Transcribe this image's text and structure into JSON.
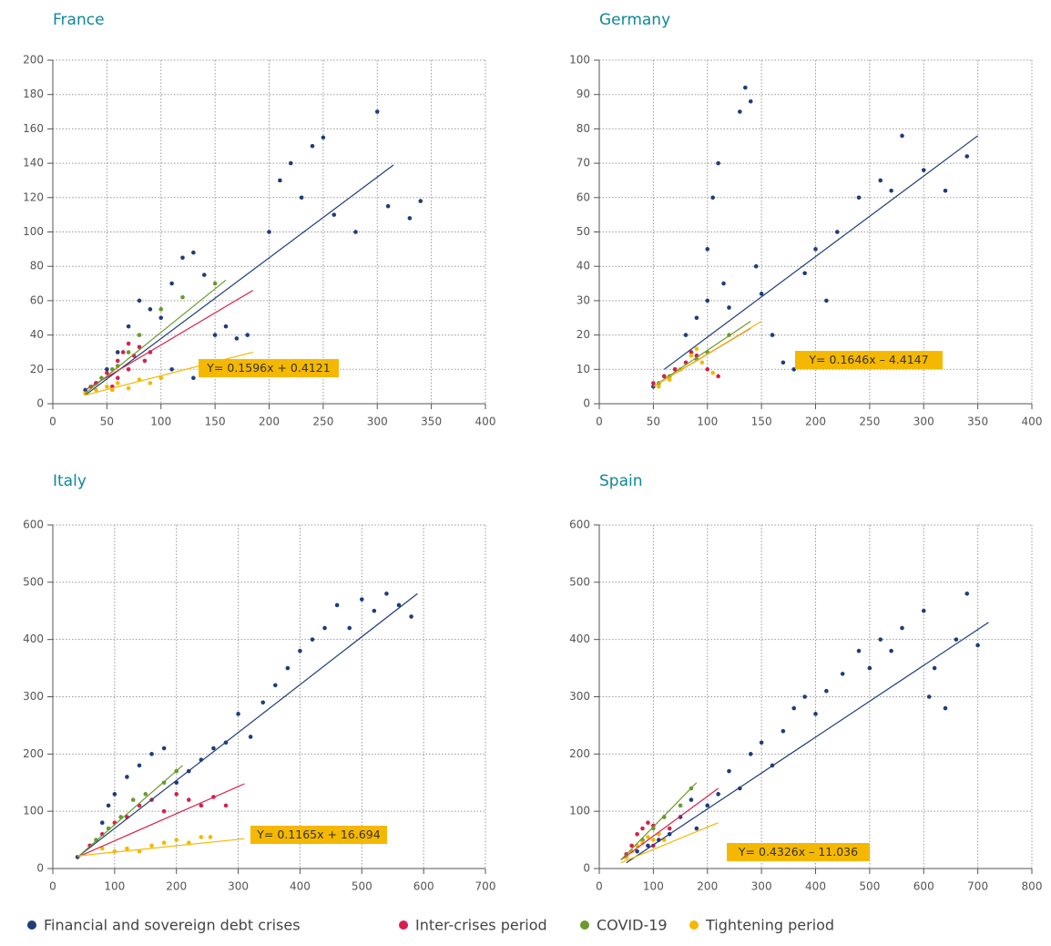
{
  "chart_data": [
    {
      "type": "scatter",
      "title": "France",
      "annotation": "Y= 0.1596x + 0.4121",
      "xlim": [
        0,
        400
      ],
      "xticks": [
        0,
        50,
        100,
        150,
        200,
        250,
        300,
        350,
        400
      ],
      "ylim": [
        0,
        200
      ],
      "yticks": [
        0,
        20,
        40,
        60,
        80,
        100,
        120,
        140,
        160,
        180,
        200
      ],
      "grid": true,
      "series": [
        {
          "x": [
            30,
            40,
            50,
            60,
            70,
            80,
            90,
            100,
            110,
            120,
            130,
            140,
            150,
            160,
            170,
            180,
            200,
            210,
            220,
            230,
            240,
            250,
            260,
            280,
            300,
            310,
            330,
            340,
            110,
            130,
            180
          ],
          "values": [
            8,
            12,
            20,
            30,
            45,
            60,
            55,
            50,
            70,
            85,
            88,
            75,
            40,
            45,
            38,
            40,
            100,
            130,
            140,
            120,
            150,
            155,
            110,
            100,
            170,
            115,
            108,
            118,
            20,
            15,
            20
          ],
          "trend": {
            "x": [
              30,
              315
            ],
            "y": [
              5,
              139
            ]
          }
        },
        {
          "x": [
            40,
            50,
            60,
            65,
            70,
            75,
            80,
            85,
            90,
            60,
            70,
            55
          ],
          "values": [
            12,
            18,
            25,
            30,
            35,
            28,
            33,
            25,
            30,
            15,
            20,
            10
          ],
          "trend": {
            "x": [
              30,
              185
            ],
            "y": [
              8,
              66
            ]
          }
        },
        {
          "x": [
            35,
            45,
            55,
            60,
            70,
            80,
            100,
            120,
            150
          ],
          "values": [
            10,
            15,
            20,
            22,
            30,
            40,
            55,
            62,
            70
          ],
          "trend": {
            "x": [
              30,
              160
            ],
            "y": [
              6,
              72
            ]
          }
        },
        {
          "x": [
            30,
            40,
            50,
            60,
            70,
            80,
            90,
            100,
            55
          ],
          "values": [
            6,
            8,
            10,
            12,
            9,
            14,
            12,
            15,
            8
          ],
          "trend": {
            "x": [
              30,
              185
            ],
            "y": [
              5,
              30
            ]
          }
        }
      ]
    },
    {
      "type": "scatter",
      "title": "Germany",
      "annotation": "Y= 0.1646x – 4.4147",
      "xlim": [
        0,
        400
      ],
      "xticks": [
        0,
        50,
        100,
        150,
        200,
        250,
        300,
        350,
        400
      ],
      "ylim": [
        0,
        100
      ],
      "yticks": [
        0,
        10,
        20,
        30,
        40,
        50,
        60,
        70,
        80,
        90,
        100
      ],
      "grid": true,
      "series": [
        {
          "x": [
            50,
            60,
            70,
            80,
            90,
            100,
            100,
            105,
            110,
            115,
            120,
            130,
            135,
            140,
            145,
            150,
            160,
            170,
            180,
            190,
            200,
            210,
            220,
            240,
            260,
            270,
            280,
            300,
            320,
            340
          ],
          "values": [
            5,
            8,
            10,
            20,
            25,
            30,
            45,
            60,
            70,
            35,
            28,
            85,
            92,
            88,
            40,
            32,
            20,
            12,
            10,
            38,
            45,
            30,
            50,
            60,
            65,
            62,
            78,
            68,
            62,
            72
          ],
          "trend": {
            "x": [
              60,
              350
            ],
            "y": [
              10,
              78
            ]
          }
        },
        {
          "x": [
            50,
            60,
            70,
            80,
            90,
            100,
            110,
            85
          ],
          "values": [
            6,
            8,
            10,
            12,
            14,
            10,
            8,
            15
          ],
          "trend": {
            "x": [
              50,
              140
            ],
            "y": [
              5,
              22
            ]
          }
        },
        {
          "x": [
            55,
            65,
            75,
            90,
            100,
            120
          ],
          "values": [
            6,
            8,
            10,
            13,
            15,
            20
          ],
          "trend": {
            "x": [
              50,
              140
            ],
            "y": [
              5,
              24
            ]
          }
        },
        {
          "x": [
            55,
            65,
            75,
            85,
            95,
            105,
            90
          ],
          "values": [
            5,
            7,
            10,
            14,
            12,
            9,
            16
          ],
          "trend": {
            "x": [
              50,
              150
            ],
            "y": [
              5,
              24
            ]
          }
        }
      ]
    },
    {
      "type": "scatter",
      "title": "Italy",
      "annotation": "Y= 0.1165x + 16.694",
      "xlim": [
        0,
        700
      ],
      "xticks": [
        0,
        100,
        200,
        300,
        400,
        500,
        600,
        700
      ],
      "ylim": [
        0,
        600
      ],
      "yticks": [
        0,
        100,
        200,
        300,
        400,
        500,
        600
      ],
      "grid": true,
      "series": [
        {
          "x": [
            40,
            60,
            80,
            90,
            100,
            120,
            140,
            160,
            180,
            200,
            220,
            240,
            260,
            280,
            300,
            320,
            340,
            360,
            380,
            400,
            420,
            440,
            460,
            480,
            500,
            520,
            540,
            560,
            580
          ],
          "values": [
            20,
            40,
            80,
            110,
            130,
            160,
            180,
            200,
            210,
            150,
            170,
            190,
            210,
            220,
            270,
            230,
            290,
            320,
            350,
            380,
            400,
            420,
            460,
            420,
            470,
            450,
            480,
            460,
            440
          ],
          "trend": {
            "x": [
              40,
              590
            ],
            "y": [
              20,
              480
            ]
          }
        },
        {
          "x": [
            60,
            80,
            100,
            120,
            140,
            160,
            180,
            200,
            220,
            240,
            260,
            280
          ],
          "values": [
            40,
            60,
            80,
            90,
            110,
            120,
            100,
            130,
            120,
            110,
            125,
            110
          ],
          "trend": {
            "x": [
              40,
              310
            ],
            "y": [
              20,
              148
            ]
          }
        },
        {
          "x": [
            70,
            90,
            110,
            130,
            150,
            180,
            200
          ],
          "values": [
            50,
            70,
            90,
            120,
            130,
            150,
            170
          ],
          "trend": {
            "x": [
              40,
              210
            ],
            "y": [
              20,
              180
            ]
          }
        },
        {
          "x": [
            80,
            100,
            120,
            140,
            160,
            180,
            200,
            220,
            240,
            255
          ],
          "values": [
            35,
            30,
            35,
            30,
            40,
            45,
            50,
            45,
            55,
            55
          ],
          "trend": {
            "x": [
              40,
              310
            ],
            "y": [
              22,
              52
            ]
          }
        }
      ]
    },
    {
      "type": "scatter",
      "title": "Spain",
      "annotation": "Y= 0.4326x – 11.036",
      "xlim": [
        0,
        800
      ],
      "xticks": [
        0,
        100,
        200,
        300,
        400,
        500,
        600,
        700,
        800
      ],
      "ylim": [
        0,
        600
      ],
      "yticks": [
        0,
        100,
        200,
        300,
        400,
        500,
        600
      ],
      "grid": true,
      "series": [
        {
          "x": [
            50,
            70,
            90,
            110,
            130,
            150,
            170,
            180,
            200,
            220,
            240,
            260,
            280,
            300,
            320,
            340,
            360,
            380,
            400,
            420,
            450,
            480,
            500,
            520,
            540,
            560,
            600,
            610,
            620,
            640,
            660,
            680,
            700
          ],
          "values": [
            20,
            30,
            40,
            50,
            60,
            90,
            120,
            70,
            110,
            130,
            170,
            140,
            200,
            220,
            180,
            240,
            280,
            300,
            270,
            310,
            340,
            380,
            350,
            400,
            380,
            420,
            450,
            300,
            350,
            280,
            400,
            480,
            390
          ],
          "trend": {
            "x": [
              50,
              720
            ],
            "y": [
              10,
              430
            ]
          }
        },
        {
          "x": [
            50,
            60,
            70,
            80,
            90,
            100,
            110,
            120,
            130,
            100
          ],
          "values": [
            25,
            40,
            60,
            70,
            80,
            75,
            60,
            90,
            70,
            40
          ],
          "trend": {
            "x": [
              40,
              220
            ],
            "y": [
              15,
              140
            ]
          }
        },
        {
          "x": [
            60,
            80,
            100,
            120,
            150,
            170
          ],
          "values": [
            30,
            50,
            70,
            90,
            110,
            140
          ],
          "trend": {
            "x": [
              40,
              180
            ],
            "y": [
              15,
              150
            ]
          }
        },
        {
          "x": [
            50,
            60,
            70,
            80,
            90,
            100,
            110,
            120
          ],
          "values": [
            20,
            30,
            40,
            45,
            55,
            50,
            60,
            50
          ],
          "trend": {
            "x": [
              40,
              220
            ],
            "y": [
              10,
              80
            ]
          }
        }
      ]
    }
  ],
  "legend": [
    {
      "name": "Financial and sovereign debt crises",
      "color": "#1f3d7a"
    },
    {
      "name": "Inter-crises period",
      "color": "#d6204c"
    },
    {
      "name": "COVID-19",
      "color": "#6a9a2e"
    },
    {
      "name": "Tightening period",
      "color": "#f5b800"
    }
  ]
}
